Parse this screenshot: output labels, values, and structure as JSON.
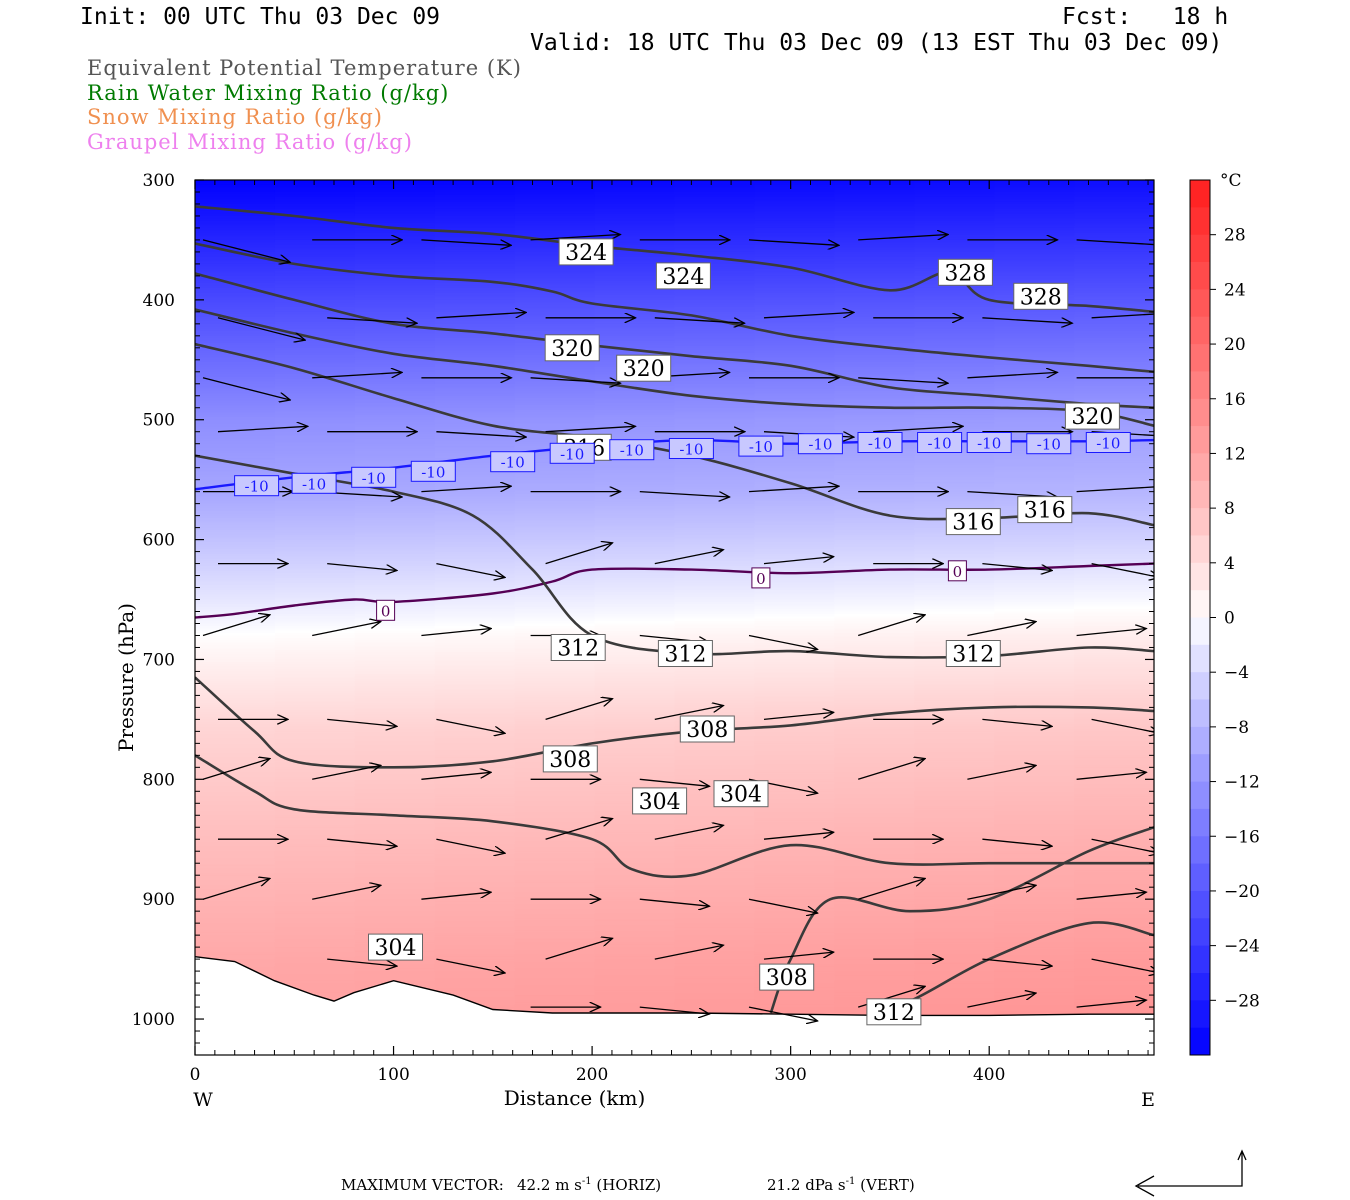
{
  "header": {
    "init": "Init: 00 UTC Thu 03 Dec 09",
    "fcst": "Fcst:   18 h",
    "valid": "Valid: 18 UTC Thu 03 Dec 09 (13 EST Thu 03 Dec 09)",
    "legend": [
      {
        "label": "Equivalent Potential Temperature (K)",
        "color": "#555555"
      },
      {
        "label": "Rain Water Mixing Ratio (g/kg)",
        "color": "#007a00"
      },
      {
        "label": "Snow Mixing Ratio (g/kg)",
        "color": "#f09050"
      },
      {
        "label": "Graupel Mixing Ratio (g/kg)",
        "color": "#ee80ee"
      }
    ]
  },
  "chart_data": {
    "type": "heatmap",
    "description_type": "cross-section",
    "xlabel": "Distance (km)",
    "ylabel": "Pressure (hPa)",
    "x_ticks": [
      0,
      100,
      200,
      300,
      400
    ],
    "y_ticks": [
      300,
      400,
      500,
      600,
      700,
      800,
      900,
      1000
    ],
    "xlim": [
      0,
      483
    ],
    "ylim": [
      1030,
      300
    ],
    "x_end_labels": {
      "left": "W",
      "right": "E"
    },
    "colorbar": {
      "unit": "°C",
      "ticks": [
        28,
        24,
        20,
        16,
        12,
        8,
        4,
        0,
        -4,
        -8,
        -12,
        -16,
        -20,
        -24,
        -28
      ],
      "range": [
        -32,
        32
      ],
      "colors": {
        "cold": "#0000ff",
        "neutral": "#ffffff",
        "warm": "#ff1e1e"
      }
    },
    "temperature_field": {
      "pressure": [
        300,
        400,
        500,
        560,
        620,
        680,
        760,
        850,
        950,
        1000
      ],
      "west_c": [
        -32,
        -22,
        -13,
        -10,
        -5,
        0,
        5,
        8,
        11,
        12
      ],
      "east_c": [
        -30,
        -20,
        -11,
        -8,
        -3,
        2,
        7,
        10,
        13,
        14
      ]
    },
    "theta_e_contours": [
      {
        "value": 312,
        "x": [
          0,
          50,
          100,
          140,
          170,
          200,
          250,
          300,
          350,
          400,
          450,
          483
        ],
        "p": [
          530,
          545,
          560,
          580,
          625,
          680,
          695,
          693,
          698,
          697,
          690,
          693
        ]
      },
      {
        "value": 316,
        "x": [
          0,
          50,
          100,
          150,
          200,
          250,
          300,
          350,
          400,
          450,
          483
        ],
        "p": [
          437,
          457,
          482,
          505,
          515,
          530,
          553,
          580,
          582,
          578,
          588
        ]
      },
      {
        "value": 320,
        "x": [
          0,
          50,
          100,
          150,
          200,
          250,
          300,
          350,
          400,
          450,
          483
        ],
        "p": [
          408,
          428,
          445,
          455,
          468,
          480,
          487,
          490,
          490,
          493,
          505
        ]
      },
      {
        "value": 324,
        "x": [
          0,
          50,
          100,
          150,
          200,
          250,
          300,
          350,
          400,
          450,
          483
        ],
        "p": [
          378,
          400,
          420,
          428,
          438,
          447,
          455,
          473,
          480,
          487,
          490
        ]
      },
      {
        "value": 324,
        "x": [
          0,
          50,
          100,
          150,
          180,
          200,
          250,
          300,
          350,
          400,
          450,
          483
        ],
        "p": [
          353,
          370,
          380,
          385,
          393,
          403,
          413,
          430,
          440,
          448,
          455,
          460
        ]
      },
      {
        "value": 328,
        "x": [
          0,
          50,
          100,
          150,
          200,
          250,
          300,
          350,
          380,
          400,
          450,
          483
        ],
        "p": [
          322,
          330,
          340,
          345,
          355,
          363,
          373,
          392,
          377,
          400,
          405,
          410
        ]
      },
      {
        "value": 308,
        "x": [
          0,
          30,
          50,
          100,
          150,
          200,
          250,
          300,
          350,
          400,
          450,
          483
        ],
        "p": [
          715,
          760,
          785,
          790,
          785,
          770,
          760,
          755,
          745,
          740,
          740,
          743
        ]
      },
      {
        "value": 304,
        "x": [
          0,
          30,
          50,
          100,
          150,
          200,
          220,
          250,
          300,
          350,
          400,
          450,
          483
        ],
        "p": [
          780,
          810,
          825,
          830,
          835,
          850,
          875,
          880,
          855,
          870,
          870,
          870,
          870
        ]
      },
      {
        "value": 312,
        "x": [
          290,
          300,
          320,
          360,
          400,
          450,
          483
        ],
        "p": [
          995,
          950,
          900,
          910,
          900,
          860,
          840
        ]
      },
      {
        "value": 308,
        "x": [
          340,
          360,
          400,
          450,
          483
        ],
        "p": [
          990,
          985,
          950,
          920,
          930
        ]
      }
    ],
    "theta_e_labels": [
      {
        "text": "324",
        "x": 197,
        "p": 360
      },
      {
        "text": "324",
        "x": 246,
        "p": 380
      },
      {
        "text": "328",
        "x": 388,
        "p": 377
      },
      {
        "text": "328",
        "x": 426,
        "p": 397
      },
      {
        "text": "320",
        "x": 190,
        "p": 440
      },
      {
        "text": "320",
        "x": 226,
        "p": 457
      },
      {
        "text": "320",
        "x": 452,
        "p": 497
      },
      {
        "text": "316",
        "x": 196,
        "p": 523
      },
      {
        "text": "316",
        "x": 392,
        "p": 585
      },
      {
        "text": "316",
        "x": 428,
        "p": 575
      },
      {
        "text": "312",
        "x": 193,
        "p": 690
      },
      {
        "text": "312",
        "x": 247,
        "p": 695
      },
      {
        "text": "312",
        "x": 392,
        "p": 695
      },
      {
        "text": "308",
        "x": 189,
        "p": 783
      },
      {
        "text": "308",
        "x": 258,
        "p": 758
      },
      {
        "text": "304",
        "x": 234,
        "p": 818
      },
      {
        "text": "304",
        "x": 275,
        "p": 812
      },
      {
        "text": "304",
        "x": 101,
        "p": 940
      },
      {
        "text": "308",
        "x": 298,
        "p": 965
      },
      {
        "text": "312",
        "x": 352,
        "p": 994
      }
    ],
    "isotherms": [
      {
        "value": -10,
        "color": "#1a1aff",
        "x": [
          0,
          50,
          100,
          150,
          200,
          250,
          300,
          350,
          400,
          450,
          483
        ],
        "p": [
          558,
          548,
          540,
          530,
          522,
          517,
          520,
          518,
          518,
          518,
          517
        ]
      },
      {
        "value": 0,
        "color": "#550055",
        "x": [
          0,
          20,
          50,
          80,
          100,
          150,
          180,
          200,
          250,
          300,
          350,
          400,
          450,
          483
        ],
        "p": [
          665,
          662,
          655,
          650,
          652,
          645,
          635,
          625,
          625,
          628,
          625,
          625,
          622,
          620
        ]
      }
    ],
    "isotherm_labels": [
      {
        "text": "-10",
        "x": 31,
        "p": 555
      },
      {
        "text": "-10",
        "x": 60,
        "p": 553
      },
      {
        "text": "-10",
        "x": 90,
        "p": 548
      },
      {
        "text": "-10",
        "x": 120,
        "p": 543
      },
      {
        "text": "-10",
        "x": 160,
        "p": 535
      },
      {
        "text": "-10",
        "x": 190,
        "p": 528
      },
      {
        "text": "-10",
        "x": 220,
        "p": 525
      },
      {
        "text": "-10",
        "x": 250,
        "p": 524
      },
      {
        "text": "-10",
        "x": 285,
        "p": 522
      },
      {
        "text": "-10",
        "x": 315,
        "p": 520
      },
      {
        "text": "-10",
        "x": 345,
        "p": 519
      },
      {
        "text": "-10",
        "x": 375,
        "p": 519
      },
      {
        "text": "-10",
        "x": 400,
        "p": 519
      },
      {
        "text": "-10",
        "x": 430,
        "p": 520
      },
      {
        "text": "-10",
        "x": 460,
        "p": 519
      },
      {
        "text": "0",
        "x": 96,
        "p": 659
      },
      {
        "text": "0",
        "x": 285,
        "p": 632
      },
      {
        "text": "0",
        "x": 384,
        "p": 626
      }
    ],
    "terrain": {
      "x": [
        0,
        20,
        40,
        60,
        70,
        80,
        100,
        130,
        150,
        180,
        200,
        250,
        300,
        350,
        400,
        450,
        483
      ],
      "p": [
        948,
        952,
        968,
        980,
        985,
        978,
        968,
        980,
        992,
        995,
        995,
        995,
        996,
        997,
        997,
        996,
        996
      ]
    },
    "wind_vectors": {
      "grid_x_km": [
        0,
        55,
        110,
        165,
        220,
        275,
        330,
        385,
        440
      ],
      "grid_p_hpa": [
        350,
        415,
        465,
        510,
        560,
        620,
        680,
        750,
        800,
        850,
        900,
        950,
        990
      ],
      "max_horiz": "42.2 m s-1",
      "max_vert": "21.2 dPa s-1"
    }
  },
  "footer": {
    "max_vector_label": "MAXIMUM VECTOR:",
    "horiz_value": "42.2",
    "horiz_unit": "m s",
    "horiz_exp": "-1",
    "horiz_tag": "(HORIZ)",
    "vert_value": "21.2",
    "vert_unit": "dPa s",
    "vert_exp": "-1",
    "vert_tag": "(VERT)"
  }
}
